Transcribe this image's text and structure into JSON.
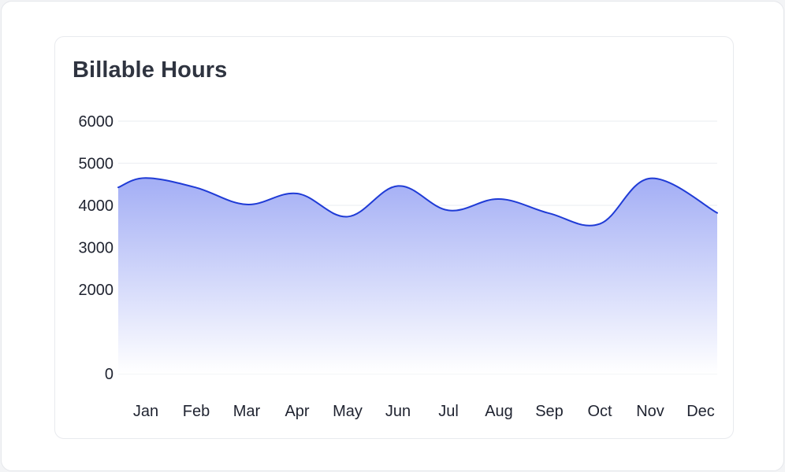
{
  "chart_data": {
    "type": "area",
    "title": "Billable Hours",
    "xlabel": "",
    "ylabel": "",
    "categories": [
      "Jan",
      "Feb",
      "Mar",
      "Apr",
      "May",
      "Jun",
      "Jul",
      "Aug",
      "Sep",
      "Oct",
      "Nov",
      "Dec"
    ],
    "series": [
      {
        "values": [
          4650,
          4420,
          4020,
          4280,
          3730,
          4460,
          3880,
          4150,
          3810,
          3560,
          4640,
          3820
        ]
      }
    ],
    "y_ticks": [
      "6000",
      "5000",
      "4000",
      "3000",
      "2000",
      "0"
    ],
    "ylim": [
      0,
      6000
    ],
    "grid": true,
    "legend": "none",
    "colors": {
      "line": "#1f3bd6",
      "fill_top": "#a3aef5",
      "fill_bottom": "#ffffff",
      "grid": "#eef0f3",
      "text": "#1f2330"
    }
  }
}
